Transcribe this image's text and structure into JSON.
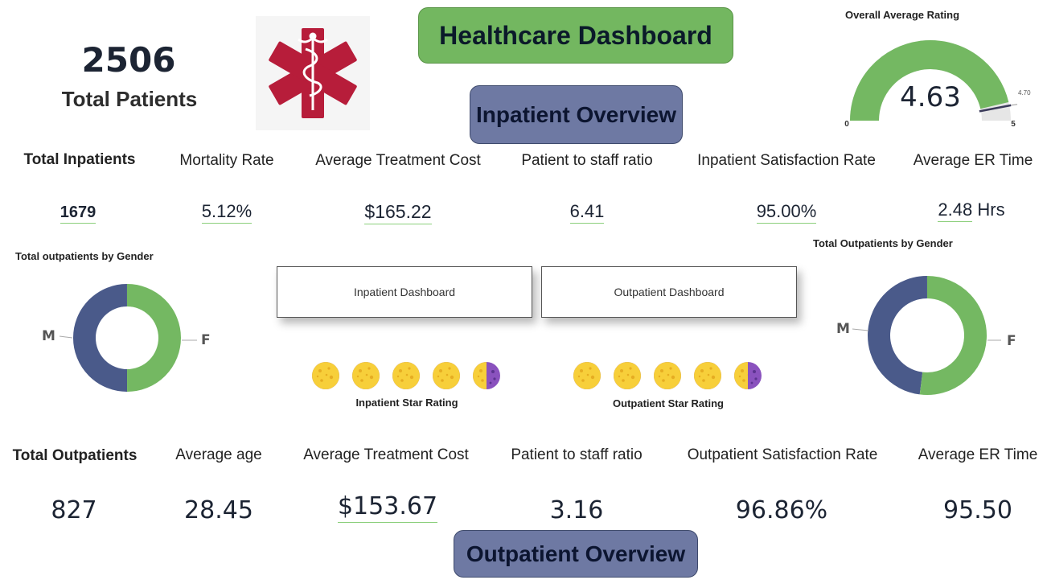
{
  "header": {
    "title": "Healthcare Dashboard",
    "total_patients_value": "2506",
    "total_patients_label": "Total Patients"
  },
  "gauge": {
    "title": "Overall Average Rating",
    "value": 4.63,
    "value_label": "4.63",
    "min": 0,
    "max": 5,
    "target": 4.7,
    "min_label": "0",
    "max_label": "5",
    "target_label": "4.70",
    "fill_color": "#74b862",
    "track_color": "#e6e6e6"
  },
  "inpatient": {
    "section_title": "Inpatient Overview",
    "kpis": [
      {
        "label": "Total Inpatients",
        "value": "1679"
      },
      {
        "label": "Mortality Rate",
        "value": "5.12%"
      },
      {
        "label": "Average Treatment Cost",
        "value": "$165.22"
      },
      {
        "label": "Patient to staff ratio",
        "value": "6.41"
      },
      {
        "label": "Inpatient Satisfaction Rate",
        "value": "95.00%"
      },
      {
        "label": "Average ER Time",
        "value": "2.48",
        "unit": "Hrs"
      }
    ],
    "star_rating_label": "Inpatient Star Rating",
    "star_rating": 4.5
  },
  "outpatient": {
    "section_title": "Outpatient Overview",
    "kpis": [
      {
        "label": "Total Outpatients",
        "value": "827"
      },
      {
        "label": "Average age",
        "value": "28.45"
      },
      {
        "label": "Average Treatment Cost",
        "value": "$153.67"
      },
      {
        "label": "Patient to staff ratio",
        "value": "3.16"
      },
      {
        "label": "Outpatient Satisfaction Rate",
        "value": "96.86%"
      },
      {
        "label": "Average ER Time",
        "value": "95.50"
      }
    ],
    "star_rating_label": "Outpatient Star Rating",
    "star_rating": 4.5
  },
  "gender_left": {
    "title": "Total outpatients by Gender",
    "labels": {
      "male": "M",
      "female": "F"
    },
    "male_fraction": 0.5,
    "female_fraction": 0.5
  },
  "gender_right": {
    "title": "Total Outpatients by Gender",
    "labels": {
      "male": "M",
      "female": "F"
    },
    "male_fraction": 0.48,
    "female_fraction": 0.52
  },
  "nav": {
    "inpatient_button": "Inpatient Dashboard",
    "outpatient_button": "Outpatient Dashboard"
  },
  "colors": {
    "male": "#4a5a8a",
    "female": "#74b862",
    "star": "#f7cf3a",
    "star_dot": "#e6ad22",
    "star_empty": "#8a52be"
  }
}
